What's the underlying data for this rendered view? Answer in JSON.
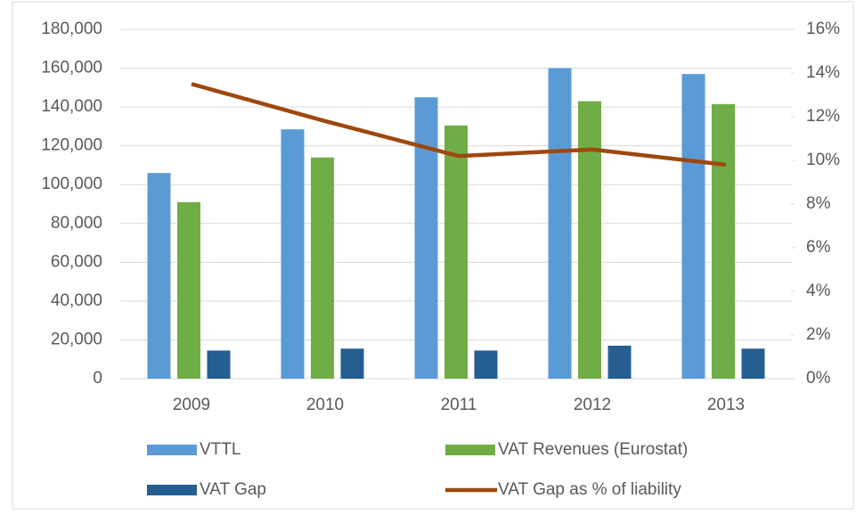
{
  "chart_data": {
    "type": "bar",
    "categories": [
      "2009",
      "2010",
      "2011",
      "2012",
      "2013"
    ],
    "series": [
      {
        "name": "VTTL",
        "color": "#5b9bd5",
        "values": [
          106000,
          128500,
          145000,
          160000,
          157000
        ]
      },
      {
        "name": "VAT Revenues (Eurostat)",
        "color": "#70ad47",
        "values": [
          91000,
          114000,
          130500,
          143000,
          141500
        ]
      },
      {
        "name": "VAT Gap",
        "color": "#255e91",
        "values": [
          14500,
          15500,
          14500,
          17000,
          15500
        ]
      },
      {
        "name": "VAT Gap as % of liability",
        "color": "#9e480e",
        "type": "line",
        "axis": "y2",
        "values": [
          13.5,
          11.8,
          10.2,
          10.5,
          9.8
        ]
      }
    ],
    "ylim": [
      0,
      180000
    ],
    "yticks": [
      0,
      {
        "value": 20000,
        "label": "20,000"
      },
      {
        "value": 40000,
        "label": "40,000"
      },
      {
        "value": 60000,
        "label": "60,000"
      },
      {
        "value": 80000,
        "label": "80,000"
      },
      {
        "value": 100000,
        "label": "100,000"
      },
      {
        "value": 120000,
        "label": "120,000"
      },
      {
        "value": 140000,
        "label": "140,000"
      },
      {
        "value": 160000,
        "label": "160,000"
      },
      {
        "value": 180000,
        "label": "180,000"
      }
    ],
    "y2lim": [
      0,
      16
    ],
    "y2ticks": [
      {
        "value": 0,
        "label": "0%"
      },
      {
        "value": 2,
        "label": "2%"
      },
      {
        "value": 4,
        "label": "4%"
      },
      {
        "value": 6,
        "label": "6%"
      },
      {
        "value": 8,
        "label": "8%"
      },
      {
        "value": 10,
        "label": "10%"
      },
      {
        "value": 12,
        "label": "12%"
      },
      {
        "value": 14,
        "label": "14%"
      },
      {
        "value": 16,
        "label": "16%"
      }
    ],
    "grid": true,
    "legend": "bottom"
  }
}
